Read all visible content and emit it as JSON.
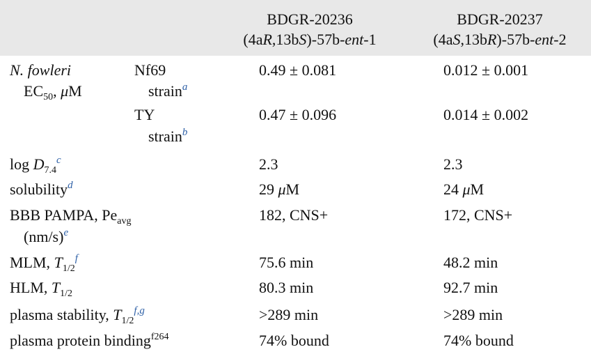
{
  "table": {
    "columns": [
      {
        "id": "BDGR-20236",
        "name": [
          "(4a",
          "R",
          ",13b",
          "S",
          ")-57b-",
          "ent",
          "-1"
        ]
      },
      {
        "id": "BDGR-20237",
        "name": [
          "(4a",
          "S",
          ",13b",
          "R",
          ")-57b-",
          "ent",
          "-2"
        ]
      }
    ],
    "fowleri": {
      "label": [
        "N. fowleri",
        "EC",
        "50",
        ", ",
        "μ",
        "M"
      ],
      "strains": [
        {
          "name": "Nf69",
          "suffix": "strain",
          "note": "a",
          "values": [
            "0.49 ± 0.081",
            "0.012 ± 0.001"
          ]
        },
        {
          "name": "TY",
          "suffix": "strain",
          "note": "b",
          "values": [
            "0.47 ± 0.096",
            "0.014 ± 0.002"
          ]
        }
      ]
    },
    "rows": [
      {
        "label": [
          "log ",
          "D",
          "7.4",
          "c"
        ],
        "values": [
          "2.3",
          "2.3"
        ]
      },
      {
        "label": [
          "solubility",
          "d"
        ],
        "values": [
          [
            "29 ",
            "μ",
            "M"
          ],
          [
            "24 ",
            "μ",
            "M"
          ]
        ]
      },
      {
        "label": [
          "BBB PAMPA, Pe",
          "avg",
          "(nm/s)",
          "e"
        ],
        "values": [
          "182, CNS+",
          "172, CNS+"
        ]
      },
      {
        "label": [
          "MLM, ",
          "T",
          "1/2",
          "f"
        ],
        "values": [
          "75.6 min",
          "48.2 min"
        ]
      },
      {
        "label": [
          "HLM, ",
          "T",
          "1/2"
        ],
        "values": [
          "80.3 min",
          "92.7 min"
        ]
      },
      {
        "label": [
          "plasma stability, ",
          "T",
          "1/2",
          "f,g"
        ],
        "values": [
          ">289 min",
          ">289 min"
        ]
      },
      {
        "label": [
          "plasma protein binding",
          "f264"
        ],
        "values": [
          "74% bound",
          "74% bound"
        ]
      }
    ]
  }
}
